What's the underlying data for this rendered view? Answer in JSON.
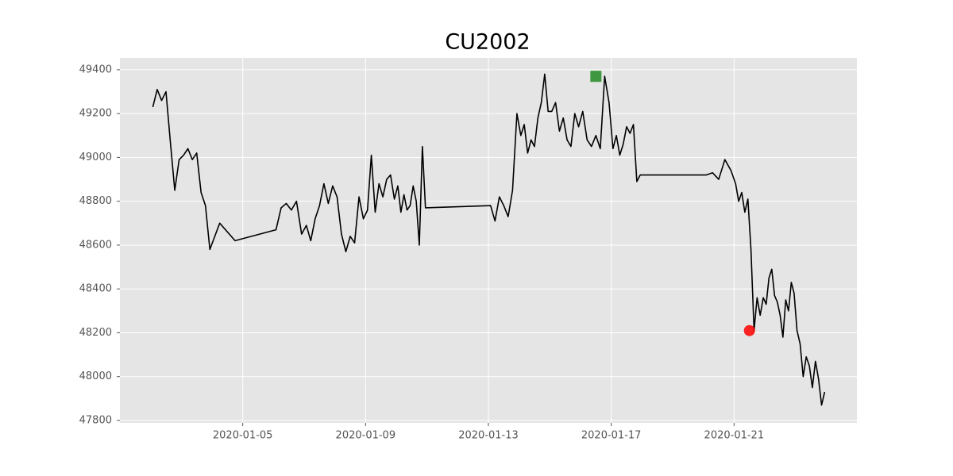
{
  "chart_data": {
    "type": "line",
    "title": "CU2002",
    "x": [
      "2020-01-02",
      "2020-01-02",
      "2020-01-02",
      "2020-01-02",
      "2020-01-02",
      "2020-01-02",
      "2020-01-02",
      "2020-01-03",
      "2020-01-03",
      "2020-01-03",
      "2020-01-03",
      "2020-01-03",
      "2020-01-03",
      "2020-01-03",
      "2020-01-04",
      "2020-01-04",
      "2020-01-06",
      "2020-01-06",
      "2020-01-06",
      "2020-01-06",
      "2020-01-06",
      "2020-01-06",
      "2020-01-07",
      "2020-01-07",
      "2020-01-07",
      "2020-01-07",
      "2020-01-07",
      "2020-01-07",
      "2020-01-07",
      "2020-01-08",
      "2020-01-08",
      "2020-01-08",
      "2020-01-08",
      "2020-01-08",
      "2020-01-08",
      "2020-01-08",
      "2020-01-09",
      "2020-01-09",
      "2020-01-09",
      "2020-01-09",
      "2020-01-09",
      "2020-01-09",
      "2020-01-09",
      "2020-01-09",
      "2020-01-10",
      "2020-01-10",
      "2020-01-10",
      "2020-01-10",
      "2020-01-10",
      "2020-01-10",
      "2020-01-10",
      "2020-01-10",
      "2020-01-10",
      "2020-01-10",
      "2020-01-13",
      "2020-01-13",
      "2020-01-13",
      "2020-01-13",
      "2020-01-13",
      "2020-01-13",
      "2020-01-13",
      "2020-01-14",
      "2020-01-14",
      "2020-01-14",
      "2020-01-14",
      "2020-01-14",
      "2020-01-14",
      "2020-01-14",
      "2020-01-14",
      "2020-01-14",
      "2020-01-15",
      "2020-01-15",
      "2020-01-15",
      "2020-01-15",
      "2020-01-15",
      "2020-01-15",
      "2020-01-15",
      "2020-01-15",
      "2020-01-16",
      "2020-01-16",
      "2020-01-16",
      "2020-01-16",
      "2020-01-16",
      "2020-01-16",
      "2020-01-16",
      "2020-01-17",
      "2020-01-17",
      "2020-01-17",
      "2020-01-17",
      "2020-01-17",
      "2020-01-17",
      "2020-01-17",
      "2020-01-17",
      "2020-01-17",
      "2020-01-20",
      "2020-01-20",
      "2020-01-20",
      "2020-01-20",
      "2020-01-20",
      "2020-01-21",
      "2020-01-21",
      "2020-01-21",
      "2020-01-21",
      "2020-01-21",
      "2020-01-21",
      "2020-01-21",
      "2020-01-21",
      "2020-01-21",
      "2020-01-21",
      "2020-01-22",
      "2020-01-22",
      "2020-01-22",
      "2020-01-22",
      "2020-01-22",
      "2020-01-22",
      "2020-01-22",
      "2020-01-22",
      "2020-01-22",
      "2020-01-22",
      "2020-01-22",
      "2020-01-23",
      "2020-01-23",
      "2020-01-23",
      "2020-01-23",
      "2020-01-23",
      "2020-01-23",
      "2020-01-23",
      "2020-01-23",
      "2020-01-23",
      "2020-01-23"
    ],
    "series": [
      {
        "color": "#000000",
        "values": [
          49230,
          49310,
          49260,
          49300,
          49070,
          48850,
          48990,
          49010,
          49040,
          48990,
          49020,
          48840,
          48780,
          48580,
          48700,
          48620,
          48670,
          48770,
          48790,
          48760,
          48800,
          48650,
          48690,
          48620,
          48720,
          48780,
          48880,
          48790,
          48870,
          48820,
          48650,
          48570,
          48640,
          48610,
          48820,
          48720,
          48760,
          49010,
          48750,
          48880,
          48820,
          48900,
          48920,
          48810,
          48870,
          48750,
          48830,
          48760,
          48780,
          48870,
          48800,
          48600,
          49050,
          48770,
          48780,
          48710,
          48820,
          48780,
          48730,
          48850,
          49200,
          49100,
          49150,
          49020,
          49080,
          49050,
          49180,
          49250,
          49380,
          49210,
          49210,
          49250,
          49120,
          49180,
          49080,
          49050,
          49200,
          49140,
          49210,
          49080,
          49050,
          49100,
          49040,
          49370,
          49250,
          49040,
          49100,
          49010,
          49060,
          49140,
          49110,
          49150,
          48890,
          48920,
          48920,
          48930,
          48900,
          48990,
          48940,
          48880,
          48800,
          48840,
          48750,
          48810,
          48580,
          48210,
          48360,
          48280,
          48360,
          48330,
          48450,
          48490,
          48370,
          48340,
          48280,
          48180,
          48350,
          48300,
          48430,
          48380,
          48210,
          48150,
          48000,
          48090,
          48050,
          47950,
          48070,
          47990,
          47870,
          47930
        ]
      }
    ],
    "markers": [
      {
        "x": "2020-01-16",
        "value": 49370,
        "color": "#228b22",
        "shape": "square"
      },
      {
        "x": "2020-01-21",
        "value": 48210,
        "color": "#ff0000",
        "shape": "circle"
      }
    ],
    "xlim": [
      "2020-01-01",
      "2020-01-25"
    ],
    "xticks": [
      "2020-01-05",
      "2020-01-09",
      "2020-01-13",
      "2020-01-17",
      "2020-01-21"
    ],
    "ylim": [
      47789,
      49454
    ],
    "yticks": [
      47800,
      48000,
      48200,
      48400,
      48600,
      48800,
      49000,
      49200,
      49400
    ],
    "grid": true
  }
}
